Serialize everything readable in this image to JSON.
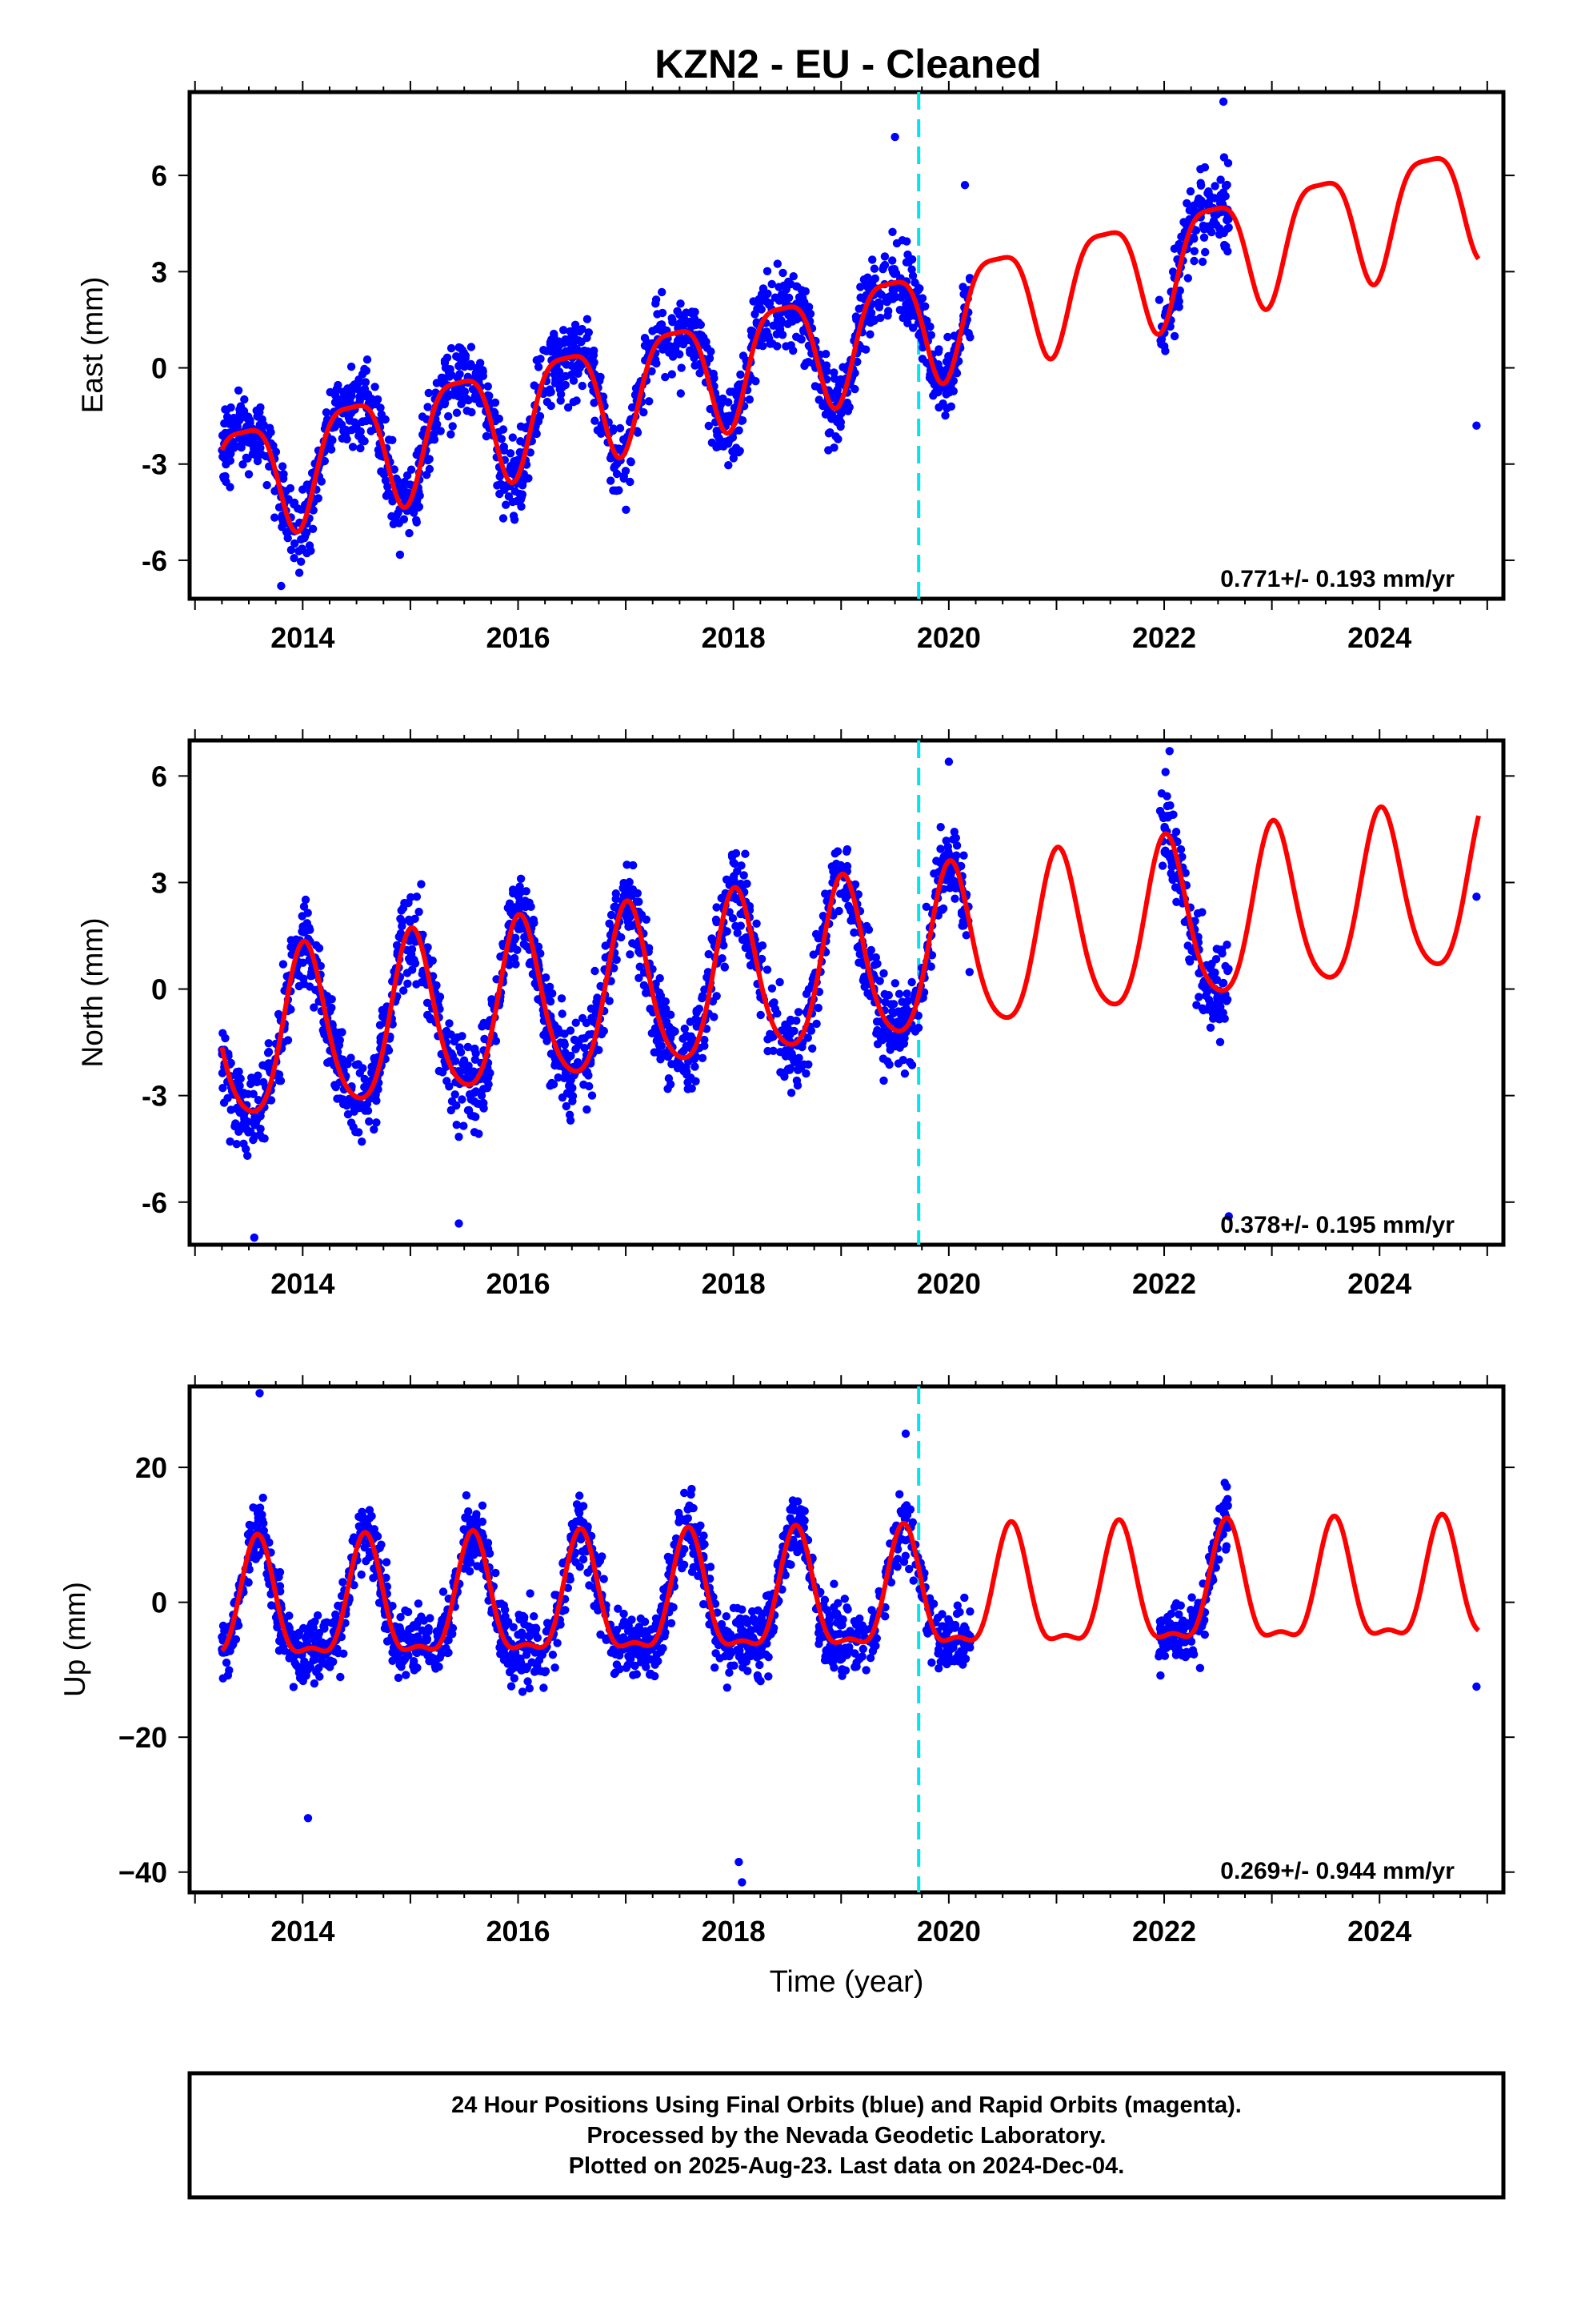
{
  "chart_data": {
    "title": "KZN2  - EU - Cleaned",
    "xlabel": "Time (year)",
    "x_ticks": [
      "2014",
      "2016",
      "2018",
      "2020",
      "2022",
      "2024"
    ],
    "xlim": [
      2012.95,
      2025.15
    ],
    "event_line_year": 2019.72,
    "colors": {
      "points": "#0000ff",
      "model": "#ff0000",
      "event": "#00e5ee"
    },
    "panels": [
      {
        "name": "east",
        "type": "scatter",
        "ylabel": "East (mm)",
        "y_ticks": [
          "6",
          "3",
          "0",
          "-3",
          "-6"
        ],
        "ylim": [
          -7.2,
          8.6
        ],
        "rate": "0.771+/- 0.193 mm/yr",
        "model": {
          "velocity": 0.771,
          "offset": -3.5,
          "annual_amp": 1.75,
          "annual_peak": 0.45,
          "semi_amp": 0.45,
          "semi_phase": 0.2
        },
        "noise": 1.0,
        "outliers": [
          [
            2024.9,
            -1.8
          ],
          [
            2022.55,
            8.3
          ],
          [
            2013.8,
            -6.8
          ],
          [
            2019.5,
            7.2
          ],
          [
            2020.15,
            5.7
          ]
        ]
      },
      {
        "name": "north",
        "type": "scatter",
        "ylabel": "North (mm)",
        "y_ticks": [
          "6",
          "3",
          "0",
          "-3",
          "-6"
        ],
        "ylim": [
          -7.2,
          7.0
        ],
        "rate": "0.378+/- 0.195 mm/yr",
        "model": {
          "velocity": 0.378,
          "offset": -1.6,
          "annual_amp": 2.3,
          "annual_peak": 0.02,
          "semi_amp": 0.35,
          "semi_phase": 0.0
        },
        "noise": 1.0,
        "outliers": [
          [
            2024.9,
            2.6
          ],
          [
            2022.05,
            6.7
          ],
          [
            2013.55,
            -7.0
          ],
          [
            2015.45,
            -6.6
          ],
          [
            2020.0,
            6.4
          ],
          [
            2022.6,
            -6.4
          ]
        ]
      },
      {
        "name": "up",
        "type": "scatter",
        "ylabel": "Up (mm)",
        "y_ticks": [
          "20",
          "0",
          "−20",
          "−40"
        ],
        "ylim": [
          -43,
          32
        ],
        "rate": "0.269+/- 0.944 mm/yr",
        "model": {
          "velocity": 0.269,
          "offset": -1.5,
          "annual_amp": 8.5,
          "annual_peak": 0.58,
          "semi_amp": 3.0,
          "semi_phase": 0.08
        },
        "noise": 4.2,
        "outliers": [
          [
            2024.9,
            -12.5
          ],
          [
            2018.05,
            -38.5
          ],
          [
            2018.08,
            -41.5
          ],
          [
            2013.6,
            31.0
          ],
          [
            2014.05,
            -32.0
          ],
          [
            2019.6,
            25.0
          ]
        ]
      }
    ],
    "data_windows": [
      [
        2013.25,
        2020.2
      ],
      [
        2021.95,
        2022.6
      ],
      [
        2024.88,
        2024.93
      ]
    ]
  },
  "footer": {
    "line1": "24 Hour Positions Using Final Orbits (blue) and Rapid Orbits (magenta).",
    "line2": "Processed by the Nevada Geodetic Laboratory.",
    "line3": "Plotted on 2025-Aug-23. Last data on 2024-Dec-04."
  }
}
